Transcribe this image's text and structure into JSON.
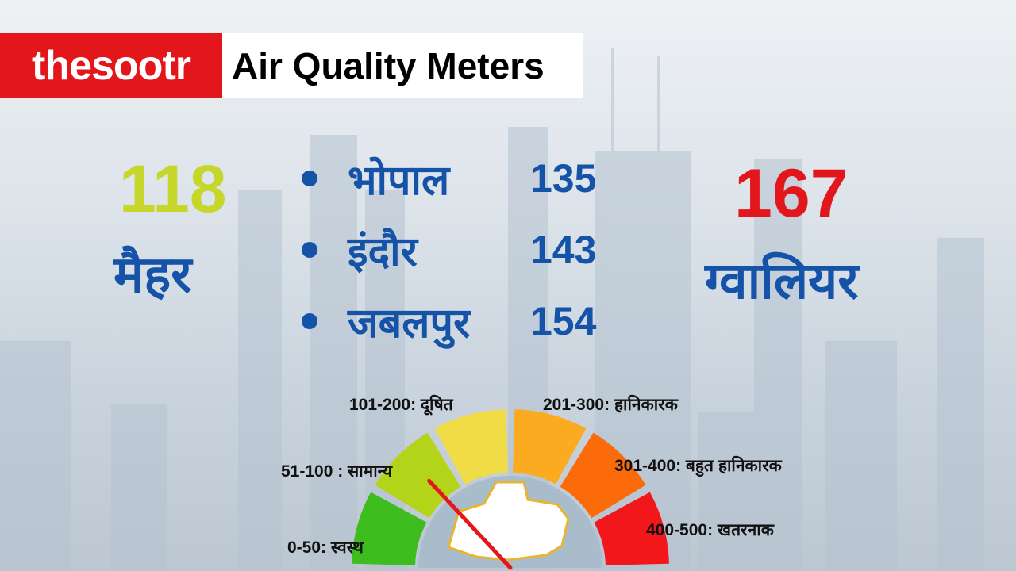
{
  "brand": "thesootr",
  "title": "Air Quality Meters",
  "left_city": {
    "name": "मैहर",
    "aqi": "118",
    "color": "#c7d62a"
  },
  "right_city": {
    "name": "ग्वालियर",
    "aqi": "167",
    "color": "#e3161b"
  },
  "cities": [
    {
      "name": "भोपाल",
      "aqi": "135"
    },
    {
      "name": "इंदौर",
      "aqi": "143"
    },
    {
      "name": "जबलपुर",
      "aqi": "154"
    }
  ],
  "gauge": {
    "segments": [
      {
        "label": "0-50: स्वस्थ",
        "color": "#3dbd1e"
      },
      {
        "label": "51-100 : सामान्य",
        "color": "#b3d418"
      },
      {
        "label": "101-200:  दूषित",
        "color": "#f0dc47"
      },
      {
        "label": "201-300: हानिकारक",
        "color": "#fbab20"
      },
      {
        "label": "301-400: बहुत हानिकारक",
        "color": "#fb6b0a"
      },
      {
        "label": "400-500: खतरनाक",
        "color": "#f2171b"
      }
    ],
    "needle_color": "#e3161b"
  }
}
